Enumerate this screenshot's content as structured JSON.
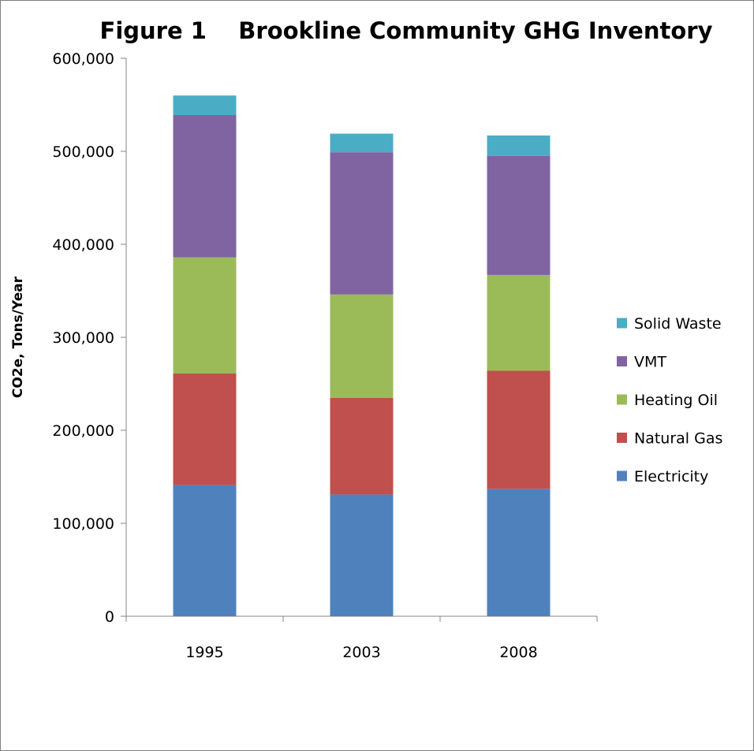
{
  "chart_data": {
    "type": "bar",
    "stacked": true,
    "title": "Figure 1    Brookline Community GHG Inventory",
    "xlabel": "",
    "ylabel": "CO2e, Tons/Year",
    "ylim": [
      0,
      600000
    ],
    "yticks": [
      0,
      100000,
      200000,
      300000,
      400000,
      500000,
      600000
    ],
    "ytick_labels": [
      "0",
      "100,000",
      "200,000",
      "300,000",
      "400,000",
      "500,000",
      "600,000"
    ],
    "categories": [
      "1995",
      "2003",
      "2008"
    ],
    "series": [
      {
        "name": "Electricity",
        "color": "#4f81bd",
        "values": [
          141000,
          131000,
          137000
        ]
      },
      {
        "name": "Natural Gas",
        "color": "#c0504d",
        "values": [
          120000,
          104000,
          127000
        ]
      },
      {
        "name": "Heating Oil",
        "color": "#9bbb59",
        "values": [
          125000,
          111000,
          103000
        ]
      },
      {
        "name": "VMT",
        "color": "#8064a2",
        "values": [
          153000,
          153000,
          128000
        ]
      },
      {
        "name": "Solid Waste",
        "color": "#4bacc6",
        "values": [
          21000,
          20000,
          22000
        ]
      }
    ],
    "legend_position": "right",
    "grid": false
  }
}
